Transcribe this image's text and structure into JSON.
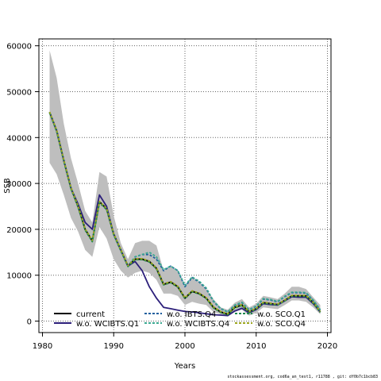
{
  "chart_data": {
    "type": "line",
    "xlabel": "Years",
    "ylabel": "SSB",
    "xlim": [
      1979.5,
      2020.5
    ],
    "ylim": [
      -2500,
      61500
    ],
    "xticks": [
      1980,
      1990,
      2000,
      2010,
      2020
    ],
    "yticks": [
      0,
      10000,
      20000,
      30000,
      40000,
      50000,
      60000
    ],
    "grid": true,
    "legend_position": "bottom-left",
    "x": [
      1981,
      1982,
      1983,
      1984,
      1985,
      1986,
      1987,
      1988,
      1989,
      1990,
      1991,
      1992,
      1993,
      1994,
      1995,
      1996,
      1997,
      1998,
      1999,
      2000,
      2001,
      2002,
      2003,
      2004,
      2005,
      2006,
      2007,
      2008,
      2009,
      2010,
      2011,
      2012,
      2013,
      2014,
      2015,
      2016,
      2017,
      2018,
      2019
    ],
    "band": {
      "color": "#bebebe",
      "lower": [
        34500,
        32000,
        27500,
        22500,
        19500,
        15500,
        14000,
        20500,
        18000,
        13500,
        11000,
        9500,
        10500,
        11000,
        10500,
        9000,
        6000,
        6000,
        5500,
        3500,
        4200,
        3800,
        3500,
        2000,
        1500,
        1000,
        2000,
        2500,
        1200,
        1800,
        3000,
        2800,
        2600,
        3500,
        4500,
        4500,
        4200,
        3000,
        1500
      ],
      "upper": [
        59000,
        53000,
        43000,
        35500,
        30000,
        24000,
        21500,
        32500,
        31500,
        23000,
        17000,
        13500,
        17000,
        17500,
        17500,
        16500,
        11000,
        11800,
        10800,
        7500,
        9500,
        8500,
        7000,
        4800,
        3000,
        2500,
        4000,
        4800,
        3000,
        3800,
        5500,
        5200,
        4800,
        6000,
        7500,
        7500,
        7000,
        5200,
        3500
      ]
    },
    "series": [
      {
        "name": "current",
        "color": "#000000",
        "dash": "solid",
        "values": [
          45500,
          41500,
          35000,
          29000,
          25000,
          20000,
          17500,
          26000,
          24500,
          19000,
          15500,
          12000,
          13500,
          13500,
          13000,
          11500,
          8000,
          8500,
          7500,
          5000,
          6500,
          6000,
          5000,
          3000,
          2000,
          1500,
          3000,
          3500,
          2000,
          2700,
          4000,
          3800,
          3600,
          4500,
          5500,
          5500,
          5500,
          4000,
          2000
        ]
      },
      {
        "name": "w.o. WCIBTS.Q1",
        "color": "#2c1f7a",
        "dash": "solid",
        "values": [
          45500,
          41500,
          35000,
          29000,
          25500,
          21500,
          20000,
          27500,
          25000,
          19000,
          15500,
          12000,
          13000,
          11000,
          7500,
          5000,
          3000,
          2700,
          2400,
          2100,
          2000,
          1800,
          1600,
          1400,
          1300,
          1200,
          2200,
          2800,
          1800,
          2500,
          3800,
          3600,
          3500,
          4400,
          5300,
          5200,
          5200,
          3800,
          2000
        ]
      },
      {
        "name": "w.o. IBTS.Q4",
        "color": "#1f5f9e",
        "dash": "dashed",
        "values": [
          45500,
          41500,
          35000,
          29000,
          25000,
          20000,
          17500,
          26000,
          24500,
          19000,
          15500,
          12000,
          14000,
          14500,
          14500,
          13500,
          11000,
          12000,
          11000,
          7500,
          9500,
          8500,
          7000,
          4300,
          2700,
          2000,
          3400,
          4000,
          2500,
          3200,
          4800,
          4600,
          4200,
          5300,
          6200,
          6200,
          6100,
          4500,
          2400
        ]
      },
      {
        "name": "w.o. WCIBTS.Q4",
        "color": "#3aa890",
        "dash": "dashed",
        "values": [
          45500,
          41500,
          35000,
          29000,
          25000,
          20000,
          17500,
          26000,
          24500,
          19000,
          15500,
          12000,
          14000,
          14500,
          15000,
          14000,
          11200,
          12000,
          11000,
          7800,
          9600,
          8700,
          7200,
          4400,
          2800,
          2000,
          3500,
          4100,
          2500,
          3300,
          4900,
          4700,
          4300,
          5400,
          6300,
          6300,
          6200,
          4600,
          2500
        ]
      },
      {
        "name": "w.o. SCO.Q1",
        "color": "#1f8a4c",
        "dash": "dashed",
        "values": [
          45400,
          41300,
          34800,
          28800,
          24800,
          19800,
          17300,
          25800,
          24300,
          18800,
          15300,
          11900,
          13400,
          13400,
          12900,
          11400,
          7900,
          8400,
          7400,
          4900,
          6400,
          5900,
          4900,
          2900,
          1900,
          1400,
          2900,
          3400,
          1900,
          2600,
          3900,
          3700,
          3500,
          4400,
          5400,
          5400,
          5400,
          3900,
          1900
        ]
      },
      {
        "name": "w.o. SCO.Q4",
        "color": "#9aa51c",
        "dash": "dashed",
        "values": [
          45600,
          41600,
          35100,
          29100,
          25100,
          20100,
          17600,
          26100,
          24600,
          19100,
          15600,
          12100,
          13600,
          13600,
          13100,
          11600,
          8100,
          8600,
          7600,
          5100,
          6600,
          6100,
          5100,
          3100,
          2100,
          1600,
          3100,
          3600,
          2100,
          2800,
          4100,
          3900,
          3700,
          4600,
          5600,
          5600,
          5600,
          4100,
          2100
        ]
      }
    ]
  },
  "footer": "stockassessment.org, cod6a_an_test1, r11788 , git: df0b7c1bcb83"
}
